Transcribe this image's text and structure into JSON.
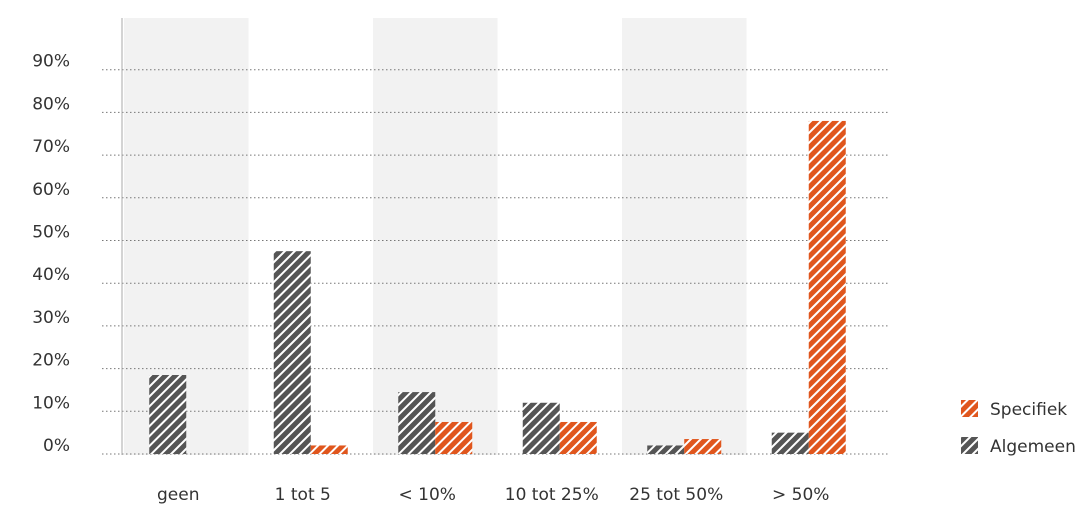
{
  "chart_data": {
    "type": "bar",
    "categories": [
      "geen",
      "1 tot 5",
      "< 10%",
      "10 tot 25%",
      "25 tot 50%",
      "> 50%"
    ],
    "series": [
      {
        "name": "Algemeen",
        "color": "#555555",
        "values": [
          18.5,
          47.5,
          14.5,
          12,
          2,
          5
        ]
      },
      {
        "name": "Specifiek",
        "color": "#e0561d",
        "values": [
          0,
          2,
          7.5,
          7.5,
          3.5,
          78
        ]
      }
    ],
    "yticks": [
      "0%",
      "10%",
      "20%",
      "30%",
      "40%",
      "50%",
      "60%",
      "70%",
      "80%",
      "90%"
    ],
    "ylim": [
      0,
      90
    ],
    "grid": true,
    "legend_position": "right",
    "legend_order": [
      "Specifiek",
      "Algemeen"
    ],
    "band_color": "#f2f2f2"
  }
}
